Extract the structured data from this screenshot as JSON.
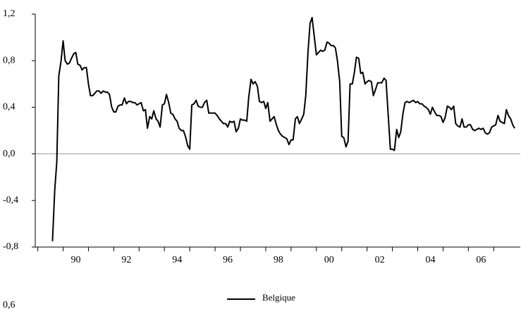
{
  "chart_data": [
    {
      "type": "line",
      "x": [
        1989.58,
        1989.67,
        1989.75,
        1989.83,
        1989.92,
        1990,
        1990.08,
        1990.17,
        1990.25,
        1990.33,
        1990.42,
        1990.5,
        1990.58,
        1990.67,
        1990.75,
        1990.83,
        1990.92,
        1991,
        1991.08,
        1991.17,
        1991.25,
        1991.33,
        1991.42,
        1991.5,
        1991.58,
        1991.67,
        1991.75,
        1991.83,
        1991.92,
        1992,
        1992.08,
        1992.17,
        1992.25,
        1992.33,
        1992.42,
        1992.5,
        1992.58,
        1992.67,
        1992.75,
        1992.83,
        1992.92,
        1993,
        1993.08,
        1993.17,
        1993.25,
        1993.33,
        1993.42,
        1993.5,
        1993.58,
        1993.67,
        1993.75,
        1993.83,
        1993.92,
        1994,
        1994.08,
        1994.17,
        1994.25,
        1994.33,
        1994.42,
        1994.5,
        1994.58,
        1994.67,
        1994.75,
        1994.83,
        1994.92,
        1995,
        1995.08,
        1995.17,
        1995.25,
        1995.33,
        1995.42,
        1995.5,
        1995.58,
        1995.67,
        1995.75,
        1995.83,
        1995.92,
        1996,
        1996.08,
        1996.17,
        1996.25,
        1996.33,
        1996.42,
        1996.5,
        1996.58,
        1996.67,
        1996.75,
        1996.83,
        1996.92,
        1997,
        1997.08,
        1997.17,
        1997.25,
        1997.33,
        1997.42,
        1997.5,
        1997.58,
        1997.67,
        1997.75,
        1997.83,
        1997.92,
        1998,
        1998.08,
        1998.17,
        1998.25,
        1998.33,
        1998.42,
        1998.5,
        1998.58,
        1998.67,
        1998.75,
        1998.83,
        1998.92,
        1999,
        1999.08,
        1999.17,
        1999.25,
        1999.33,
        1999.42,
        1999.5,
        1999.58,
        1999.67,
        1999.75,
        1999.83,
        1999.92,
        2000,
        2000.08,
        2000.17,
        2000.25,
        2000.33,
        2000.42,
        2000.5,
        2000.58,
        2000.67,
        2000.75,
        2000.83,
        2000.92,
        2001,
        2001.08,
        2001.17,
        2001.25,
        2001.33,
        2001.42,
        2001.5,
        2001.58,
        2001.67,
        2001.75,
        2001.83,
        2001.92,
        2002,
        2002.08,
        2002.17,
        2002.25,
        2002.33,
        2002.42,
        2002.5,
        2002.58,
        2002.67,
        2002.75,
        2002.83,
        2002.92,
        2003,
        2003.08,
        2003.17,
        2003.25,
        2003.33,
        2003.42,
        2003.5,
        2003.58,
        2003.67,
        2003.75,
        2003.83,
        2003.92,
        2004,
        2004.08,
        2004.17,
        2004.25,
        2004.33,
        2004.42,
        2004.5,
        2004.58,
        2004.67,
        2004.75,
        2004.83,
        2004.92,
        2005,
        2005.08,
        2005.17,
        2005.25,
        2005.33,
        2005.42,
        2005.5,
        2005.58,
        2005.67,
        2005.75,
        2005.83,
        2005.92,
        2006,
        2006.08,
        2006.17,
        2006.25,
        2006.33,
        2006.42,
        2006.5,
        2006.58,
        2006.67,
        2006.75,
        2006.83,
        2006.92,
        2007,
        2007.08,
        2007.17,
        2007.25,
        2007.33,
        2007.42,
        2007.5,
        2007.58,
        2007.67,
        2007.75,
        2007.83
      ],
      "series": [
        {
          "name": "Belgique",
          "color": "#000000",
          "values": [
            -0.75,
            -0.31,
            -0.07,
            0.67,
            0.8,
            0.97,
            0.8,
            0.77,
            0.78,
            0.82,
            0.86,
            0.87,
            0.77,
            0.76,
            0.72,
            0.74,
            0.74,
            0.6,
            0.5,
            0.5,
            0.52,
            0.54,
            0.54,
            0.52,
            0.54,
            0.53,
            0.53,
            0.51,
            0.4,
            0.36,
            0.36,
            0.41,
            0.42,
            0.42,
            0.48,
            0.43,
            0.45,
            0.45,
            0.44,
            0.44,
            0.42,
            0.43,
            0.44,
            0.37,
            0.38,
            0.22,
            0.32,
            0.3,
            0.37,
            0.3,
            0.28,
            0.23,
            0.42,
            0.43,
            0.51,
            0.44,
            0.35,
            0.34,
            0.3,
            0.28,
            0.22,
            0.2,
            0.2,
            0.15,
            0.07,
            0.04,
            0.42,
            0.43,
            0.46,
            0.41,
            0.4,
            0.4,
            0.44,
            0.46,
            0.35,
            0.35,
            0.35,
            0.35,
            0.33,
            0.3,
            0.28,
            0.26,
            0.26,
            0.23,
            0.28,
            0.27,
            0.28,
            0.19,
            0.22,
            0.3,
            0.29,
            0.29,
            0.28,
            0.49,
            0.64,
            0.6,
            0.62,
            0.58,
            0.45,
            0.44,
            0.45,
            0.39,
            0.44,
            0.28,
            0.3,
            0.32,
            0.25,
            0.2,
            0.17,
            0.15,
            0.14,
            0.13,
            0.08,
            0.12,
            0.12,
            0.3,
            0.32,
            0.26,
            0.3,
            0.34,
            0.5,
            0.88,
            1.12,
            1.17,
            1.0,
            0.85,
            0.87,
            0.89,
            0.88,
            0.89,
            0.96,
            0.95,
            0.93,
            0.93,
            0.91,
            0.8,
            0.62,
            0.15,
            0.14,
            0.06,
            0.11,
            0.6,
            0.6,
            0.7,
            0.83,
            0.82,
            0.69,
            0.7,
            0.6,
            0.62,
            0.63,
            0.62,
            0.5,
            0.55,
            0.61,
            0.61,
            0.61,
            0.65,
            0.63,
            0.35,
            0.04,
            0.04,
            0.03,
            0.21,
            0.14,
            0.19,
            0.35,
            0.44,
            0.45,
            0.44,
            0.45,
            0.46,
            0.44,
            0.45,
            0.43,
            0.43,
            0.41,
            0.4,
            0.38,
            0.34,
            0.4,
            0.36,
            0.33,
            0.33,
            0.32,
            0.27,
            0.31,
            0.41,
            0.4,
            0.38,
            0.41,
            0.26,
            0.24,
            0.23,
            0.3,
            0.23,
            0.23,
            0.25,
            0.25,
            0.21,
            0.2,
            0.21,
            0.22,
            0.21,
            0.22,
            0.18,
            0.17,
            0.18,
            0.23,
            0.24,
            0.25,
            0.33,
            0.28,
            0.27,
            0.26,
            0.38,
            0.33,
            0.3,
            0.25,
            0.22
          ]
        }
      ],
      "xlim": [
        1988.9,
        2008.05
      ],
      "xticks": [
        {
          "value": 1990.5,
          "label": "90"
        },
        {
          "value": 1992.5,
          "label": "92"
        },
        {
          "value": 1994.5,
          "label": "94"
        },
        {
          "value": 1996.5,
          "label": "96"
        },
        {
          "value": 1998.5,
          "label": "98"
        },
        {
          "value": 2000.5,
          "label": "00"
        },
        {
          "value": 2002.5,
          "label": "02"
        },
        {
          "value": 2004.5,
          "label": "04"
        },
        {
          "value": 2006.5,
          "label": "06"
        }
      ],
      "xminor_ticks": [
        1989,
        1990,
        1991,
        1992,
        1993,
        1994,
        1995,
        1996,
        1997,
        1998,
        1999,
        2000,
        2001,
        2002,
        2003,
        2004,
        2005,
        2006,
        2007
      ],
      "ylim": [
        -0.8,
        1.2
      ],
      "yticks": [
        {
          "value": -0.8,
          "label": "-0,8"
        },
        {
          "value": -0.4,
          "label": "-0,4"
        },
        {
          "value": 0,
          "label": "0,0"
        },
        {
          "value": 0.4,
          "label": "0,4"
        },
        {
          "value": 0.8,
          "label": "0,8"
        },
        {
          "value": 1.2,
          "label": "1,2"
        }
      ],
      "zero_line": 0,
      "legend": "bottom"
    },
    {
      "type": "line",
      "yticks": [
        {
          "value": 0.6,
          "label": "0,6"
        }
      ]
    }
  ]
}
